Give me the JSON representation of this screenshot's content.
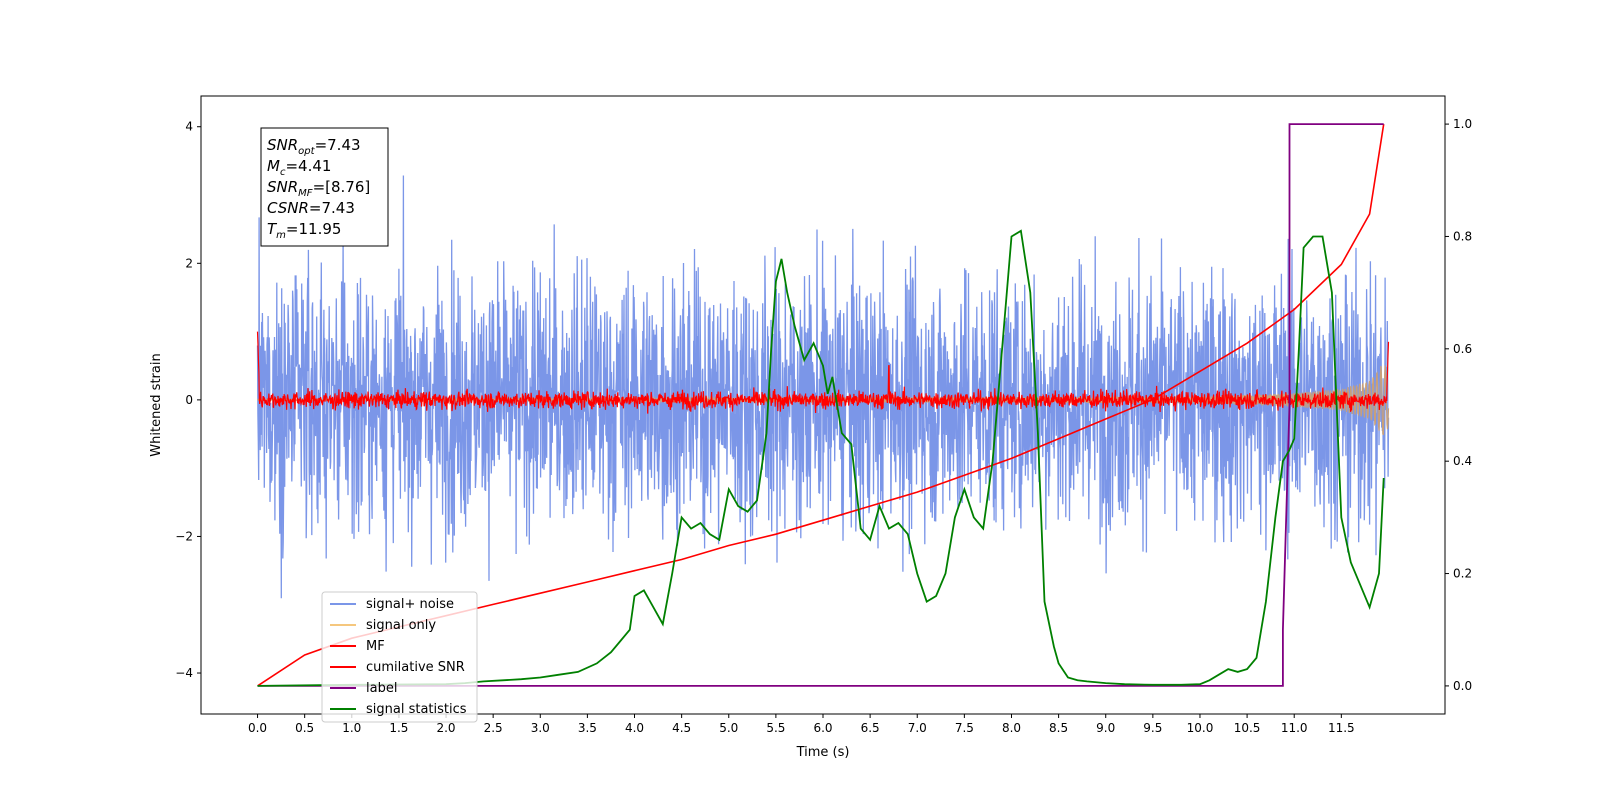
{
  "chart_data": {
    "type": "line",
    "xlabel": "Time (s)",
    "ylabel": "Whitened strain",
    "x_ticks": [
      "0.0",
      "0.5",
      "1.0",
      "1.5",
      "2.0",
      "2.5",
      "3.0",
      "3.5",
      "4.0",
      "4.5",
      "5.0",
      "5.5",
      "6.0",
      "6.5",
      "7.0",
      "7.5",
      "8.0",
      "8.5",
      "9.0",
      "9.5",
      "10.0",
      "10.5",
      "11.0",
      "11.5"
    ],
    "x_tick_values": [
      0,
      0.5,
      1,
      1.5,
      2,
      2.5,
      3,
      3.5,
      4,
      4.5,
      5,
      5.5,
      6,
      6.5,
      7,
      7.5,
      8,
      8.5,
      9,
      9.5,
      10,
      10.5,
      11,
      11.5
    ],
    "xlim": [
      -0.6,
      12.6
    ],
    "y_left_ticks": [
      "4",
      "2",
      "0",
      "−2",
      "−4"
    ],
    "y_left_tick_values": [
      4,
      2,
      0,
      -2,
      -4
    ],
    "ylim_left": [
      -4.6,
      4.45
    ],
    "y_right_ticks": [
      "1.0",
      "0.8",
      "0.6",
      "0.4",
      "0.2",
      "0.0"
    ],
    "y_right_tick_values": [
      1.0,
      0.8,
      0.6,
      0.4,
      0.2,
      0.0
    ],
    "ylim_right": [
      -0.05,
      1.05
    ],
    "grid": false,
    "legend_position": "lower-left",
    "annotation": {
      "lines": [
        {
          "var": "SNR",
          "sub": "opt",
          "value": "=7.43"
        },
        {
          "var": "M",
          "sub": "c",
          "value": "=4.41"
        },
        {
          "var": "SNR",
          "sub": "MF",
          "value": "=[8.76]"
        },
        {
          "var": "CSNR",
          "sub": "",
          "value": "=7.43"
        },
        {
          "var": "T",
          "sub": "m",
          "value": "=11.95"
        }
      ]
    },
    "series": [
      {
        "name": "signal+ noise",
        "color": "#7b96e8",
        "axis": "left",
        "approx_amplitude": 2.4,
        "x_range": [
          0,
          12.0
        ]
      },
      {
        "name": "signal only",
        "color": "#f5c77e",
        "axis": "left",
        "envelope": {
          "t": [
            0,
            10.0,
            11.0,
            11.5,
            11.8,
            11.95,
            12.0
          ],
          "amp": [
            0.01,
            0.05,
            0.1,
            0.16,
            0.28,
            0.55,
            0.4
          ]
        }
      },
      {
        "name": "MF",
        "color": "#ff0000",
        "axis": "left",
        "approx_amplitude": 0.2,
        "start_value": 1.0,
        "end_value": 0.85,
        "spike": {
          "x": 6.7,
          "y": 0.5
        }
      },
      {
        "name": "cumilative SNR",
        "color": "#ff0000",
        "axis": "right",
        "x": [
          0,
          0.5,
          1,
          1.5,
          2,
          2.5,
          3,
          3.5,
          4,
          4.5,
          5,
          5.5,
          6,
          6.5,
          7,
          7.5,
          8,
          8.5,
          9,
          9.5,
          10,
          10.5,
          11,
          11.5,
          11.8,
          11.95
        ],
        "y": [
          0.0,
          0.055,
          0.085,
          0.105,
          0.125,
          0.145,
          0.165,
          0.185,
          0.205,
          0.225,
          0.25,
          0.27,
          0.295,
          0.32,
          0.345,
          0.375,
          0.405,
          0.44,
          0.475,
          0.51,
          0.56,
          0.61,
          0.67,
          0.75,
          0.84,
          1.0
        ]
      },
      {
        "name": "label",
        "color": "#800080",
        "axis": "right",
        "x": [
          0,
          10.88,
          10.88,
          10.95,
          10.95,
          11.95
        ],
        "y": [
          0.0,
          0.0,
          0.1,
          0.5,
          1.0,
          1.0
        ]
      },
      {
        "name": "signal statistics",
        "color": "#008000",
        "axis": "right",
        "x": [
          0.0,
          1.0,
          2.0,
          2.2,
          2.4,
          2.6,
          2.8,
          3.0,
          3.2,
          3.4,
          3.6,
          3.75,
          3.85,
          3.95,
          4.0,
          4.1,
          4.2,
          4.3,
          4.4,
          4.5,
          4.6,
          4.7,
          4.8,
          4.9,
          5.0,
          5.1,
          5.2,
          5.3,
          5.4,
          5.45,
          5.5,
          5.56,
          5.62,
          5.7,
          5.8,
          5.9,
          6.0,
          6.05,
          6.1,
          6.2,
          6.3,
          6.4,
          6.5,
          6.6,
          6.7,
          6.8,
          6.9,
          7.0,
          7.1,
          7.2,
          7.3,
          7.4,
          7.5,
          7.6,
          7.7,
          7.8,
          7.9,
          8.0,
          8.1,
          8.2,
          8.28,
          8.35,
          8.45,
          8.5,
          8.6,
          8.7,
          8.8,
          9.0,
          9.2,
          9.5,
          9.8,
          10.0,
          10.1,
          10.2,
          10.3,
          10.4,
          10.5,
          10.6,
          10.7,
          10.8,
          10.88,
          10.95,
          11.0,
          11.05,
          11.1,
          11.2,
          11.3,
          11.4,
          11.5,
          11.6,
          11.7,
          11.8,
          11.9,
          11.95
        ],
        "y": [
          0.0,
          0.002,
          0.003,
          0.005,
          0.008,
          0.01,
          0.012,
          0.015,
          0.02,
          0.025,
          0.04,
          0.06,
          0.08,
          0.1,
          0.16,
          0.17,
          0.14,
          0.11,
          0.2,
          0.3,
          0.28,
          0.29,
          0.27,
          0.26,
          0.35,
          0.32,
          0.31,
          0.33,
          0.45,
          0.6,
          0.72,
          0.76,
          0.7,
          0.64,
          0.58,
          0.61,
          0.57,
          0.52,
          0.55,
          0.45,
          0.43,
          0.28,
          0.26,
          0.32,
          0.28,
          0.29,
          0.27,
          0.2,
          0.15,
          0.16,
          0.2,
          0.3,
          0.35,
          0.3,
          0.28,
          0.4,
          0.6,
          0.8,
          0.81,
          0.7,
          0.45,
          0.15,
          0.07,
          0.04,
          0.015,
          0.01,
          0.008,
          0.005,
          0.003,
          0.002,
          0.002,
          0.003,
          0.01,
          0.02,
          0.03,
          0.025,
          0.03,
          0.05,
          0.15,
          0.3,
          0.4,
          0.42,
          0.44,
          0.6,
          0.78,
          0.8,
          0.8,
          0.7,
          0.3,
          0.22,
          0.18,
          0.14,
          0.2,
          0.37
        ]
      }
    ]
  }
}
